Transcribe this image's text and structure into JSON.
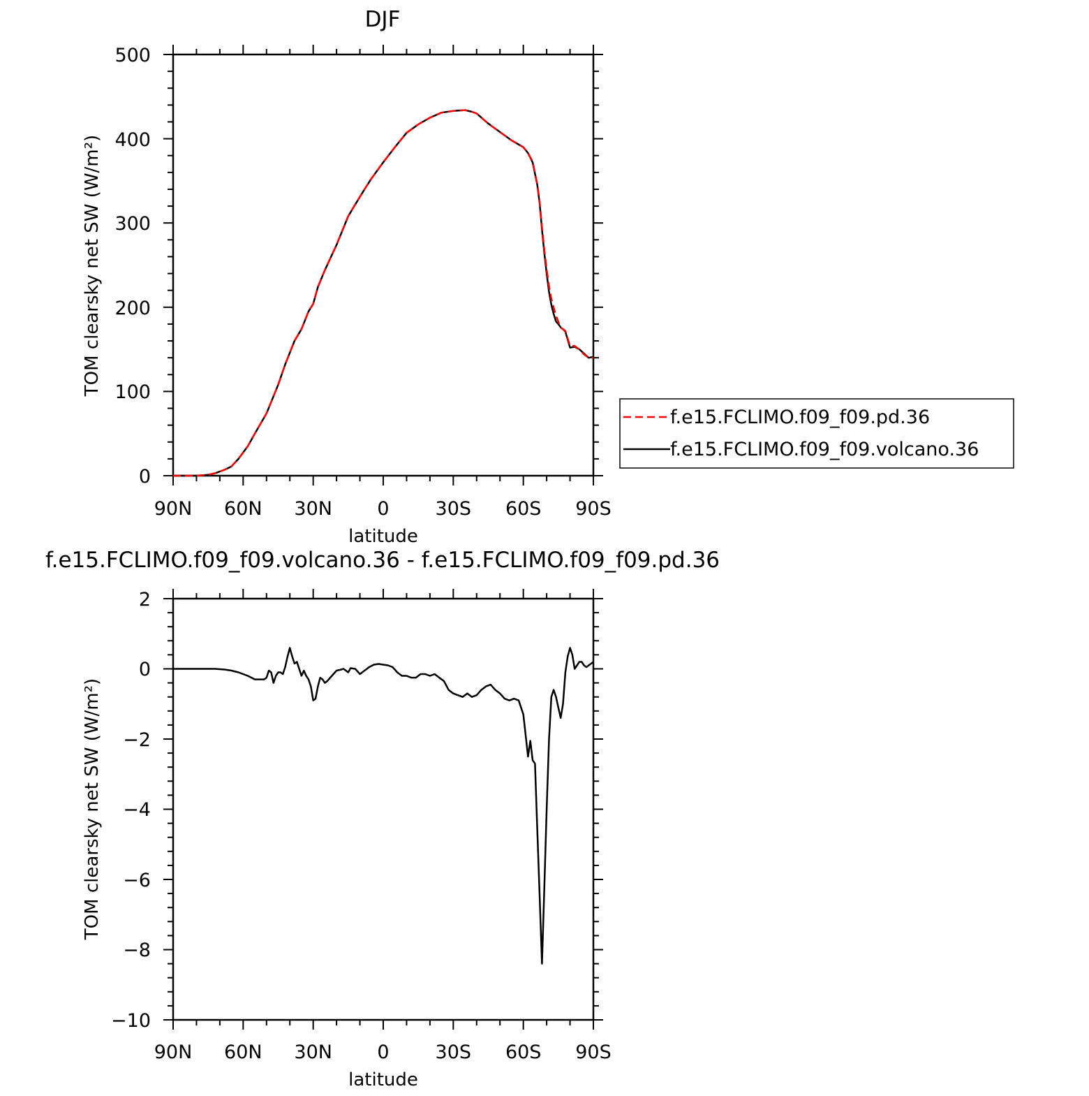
{
  "chart_data": [
    {
      "type": "line",
      "title": "DJF",
      "xlabel": "latitude",
      "ylabel": "TOM clearsky net SW (W/m²)",
      "xlim": [
        90,
        -90
      ],
      "ylim": [
        0,
        500
      ],
      "x_ticks": [
        90,
        60,
        30,
        0,
        -30,
        -60,
        -90
      ],
      "x_tick_labels": [
        "90N",
        "60N",
        "30N",
        "0",
        "30S",
        "60S",
        "90S"
      ],
      "y_ticks": [
        0,
        100,
        200,
        300,
        400,
        500
      ],
      "y_tick_labels": [
        "0",
        "100",
        "200",
        "300",
        "400",
        "500"
      ],
      "grid": false,
      "legend_position": "right",
      "series": [
        {
          "name": "f.e15.FCLIMO.f09_f09.pd.36",
          "color": "#ff0000",
          "dash": "dashed",
          "x": [
            90,
            85,
            80,
            75,
            72,
            68,
            65,
            62,
            58,
            55,
            50,
            45,
            42,
            38,
            35,
            32,
            30,
            28,
            25,
            20,
            15,
            12,
            8,
            5,
            0,
            -5,
            -10,
            -15,
            -20,
            -25,
            -30,
            -35,
            -38,
            -40,
            -45,
            -50,
            -55,
            -60,
            -62,
            -64,
            -66,
            -67,
            -68,
            -69,
            -70,
            -71,
            -72,
            -73,
            -74,
            -75,
            -76,
            -77,
            -78,
            -80,
            -82,
            -84,
            -86,
            -88,
            -90
          ],
          "y": [
            0,
            0,
            0,
            1,
            3,
            7,
            11,
            20,
            35,
            50,
            74,
            108,
            132,
            160,
            174,
            195,
            204,
            224,
            244,
            274,
            308,
            322,
            340,
            353,
            372,
            390,
            407,
            417,
            425,
            431,
            433,
            434,
            432,
            430,
            418,
            408,
            398,
            390,
            383,
            373,
            346,
            325,
            295,
            268,
            245,
            225,
            210,
            200,
            190,
            183,
            176,
            174,
            172,
            154,
            154,
            150,
            144,
            140,
            140
          ]
        },
        {
          "name": "f.e15.FCLIMO.f09_f09.volcano.36",
          "color": "#000000",
          "dash": "solid",
          "x": [
            90,
            85,
            80,
            75,
            72,
            68,
            65,
            62,
            58,
            55,
            50,
            45,
            42,
            38,
            35,
            32,
            30,
            28,
            25,
            20,
            15,
            12,
            8,
            5,
            0,
            -5,
            -10,
            -15,
            -20,
            -25,
            -30,
            -35,
            -38,
            -40,
            -45,
            -50,
            -55,
            -60,
            -62,
            -64,
            -66,
            -67,
            -68,
            -69,
            -70,
            -71,
            -72,
            -73,
            -74,
            -75,
            -76,
            -77,
            -78,
            -80,
            -82,
            -84,
            -86,
            -88,
            -90
          ],
          "y": [
            0,
            0,
            0,
            1,
            3,
            7,
            11,
            20,
            35,
            50,
            74,
            108,
            132,
            160,
            174,
            195,
            204,
            224,
            244,
            274,
            308,
            322,
            340,
            353,
            372,
            390,
            407,
            417,
            425,
            431,
            433,
            434,
            432,
            430,
            418,
            408,
            398,
            390,
            383,
            372,
            345,
            323,
            292,
            264,
            240,
            218,
            203,
            192,
            183,
            180,
            176,
            174,
            171,
            152,
            153,
            150,
            145,
            140,
            141
          ]
        }
      ]
    },
    {
      "type": "line",
      "title": "f.e15.FCLIMO.f09_f09.volcano.36 - f.e15.FCLIMO.f09_f09.pd.36",
      "xlabel": "latitude",
      "ylabel": "TOM clearsky net SW (W/m²)",
      "xlim": [
        90,
        -90
      ],
      "ylim": [
        -10,
        2
      ],
      "x_ticks": [
        90,
        60,
        30,
        0,
        -30,
        -60,
        -90
      ],
      "x_tick_labels": [
        "90N",
        "60N",
        "30N",
        "0",
        "30S",
        "60S",
        "90S"
      ],
      "y_ticks": [
        -10,
        -8,
        -6,
        -4,
        -2,
        0,
        2
      ],
      "y_tick_labels": [
        "−10",
        "−8",
        "−6",
        "−4",
        "−2",
        "0",
        "2"
      ],
      "grid": false,
      "series": [
        {
          "color": "#000000",
          "x": [
            90,
            80,
            75,
            72,
            68,
            65,
            62,
            60,
            58,
            55,
            53,
            51,
            50,
            49,
            48,
            47,
            46,
            45,
            44,
            43,
            42,
            41,
            40,
            39,
            38,
            37,
            36,
            35,
            34,
            33,
            32,
            31,
            30,
            29,
            28,
            27,
            26,
            25,
            24,
            22,
            20,
            18,
            17,
            16,
            15,
            14,
            12,
            10,
            8,
            6,
            4,
            2,
            0,
            -2,
            -4,
            -6,
            -8,
            -10,
            -12,
            -14,
            -16,
            -18,
            -20,
            -22,
            -24,
            -26,
            -28,
            -30,
            -32,
            -34,
            -36,
            -38,
            -40,
            -42,
            -44,
            -46,
            -48,
            -50,
            -52,
            -54,
            -56,
            -58,
            -60,
            -62,
            -63,
            -64,
            -65,
            -66,
            -67,
            -68,
            -69,
            -70,
            -71,
            -72,
            -73,
            -74,
            -75,
            -76,
            -77,
            -78,
            -79,
            -80,
            -81,
            -82,
            -83,
            -84,
            -85,
            -86,
            -87,
            -88,
            -89,
            -90
          ],
          "y": [
            0,
            0,
            0,
            0,
            -0.02,
            -0.05,
            -0.1,
            -0.15,
            -0.2,
            -0.3,
            -0.3,
            -0.3,
            -0.25,
            -0.05,
            -0.1,
            -0.4,
            -0.2,
            -0.1,
            -0.1,
            -0.15,
            0.05,
            0.35,
            0.6,
            0.35,
            0.15,
            0.2,
            0.0,
            -0.2,
            -0.05,
            -0.2,
            -0.3,
            -0.5,
            -0.9,
            -0.85,
            -0.5,
            -0.25,
            -0.3,
            -0.4,
            -0.35,
            -0.2,
            -0.05,
            -0.02,
            0.0,
            -0.05,
            -0.1,
            0.02,
            0.0,
            -0.15,
            -0.05,
            0.05,
            0.12,
            0.14,
            0.12,
            0.1,
            0.05,
            -0.1,
            -0.2,
            -0.2,
            -0.25,
            -0.25,
            -0.15,
            -0.15,
            -0.2,
            -0.15,
            -0.25,
            -0.35,
            -0.6,
            -0.7,
            -0.75,
            -0.8,
            -0.7,
            -0.8,
            -0.75,
            -0.6,
            -0.5,
            -0.45,
            -0.6,
            -0.7,
            -0.85,
            -0.9,
            -0.85,
            -0.9,
            -1.3,
            -2.5,
            -2.05,
            -2.6,
            -2.7,
            -4.6,
            -6.5,
            -8.4,
            -6.2,
            -4.0,
            -2.0,
            -0.8,
            -0.6,
            -0.8,
            -1.1,
            -1.4,
            -1.0,
            -0.1,
            0.35,
            0.6,
            0.4,
            0.0,
            0.1,
            0.2,
            0.2,
            0.1,
            0.05,
            0.1,
            0.15,
            0.2
          ]
        }
      ]
    }
  ]
}
